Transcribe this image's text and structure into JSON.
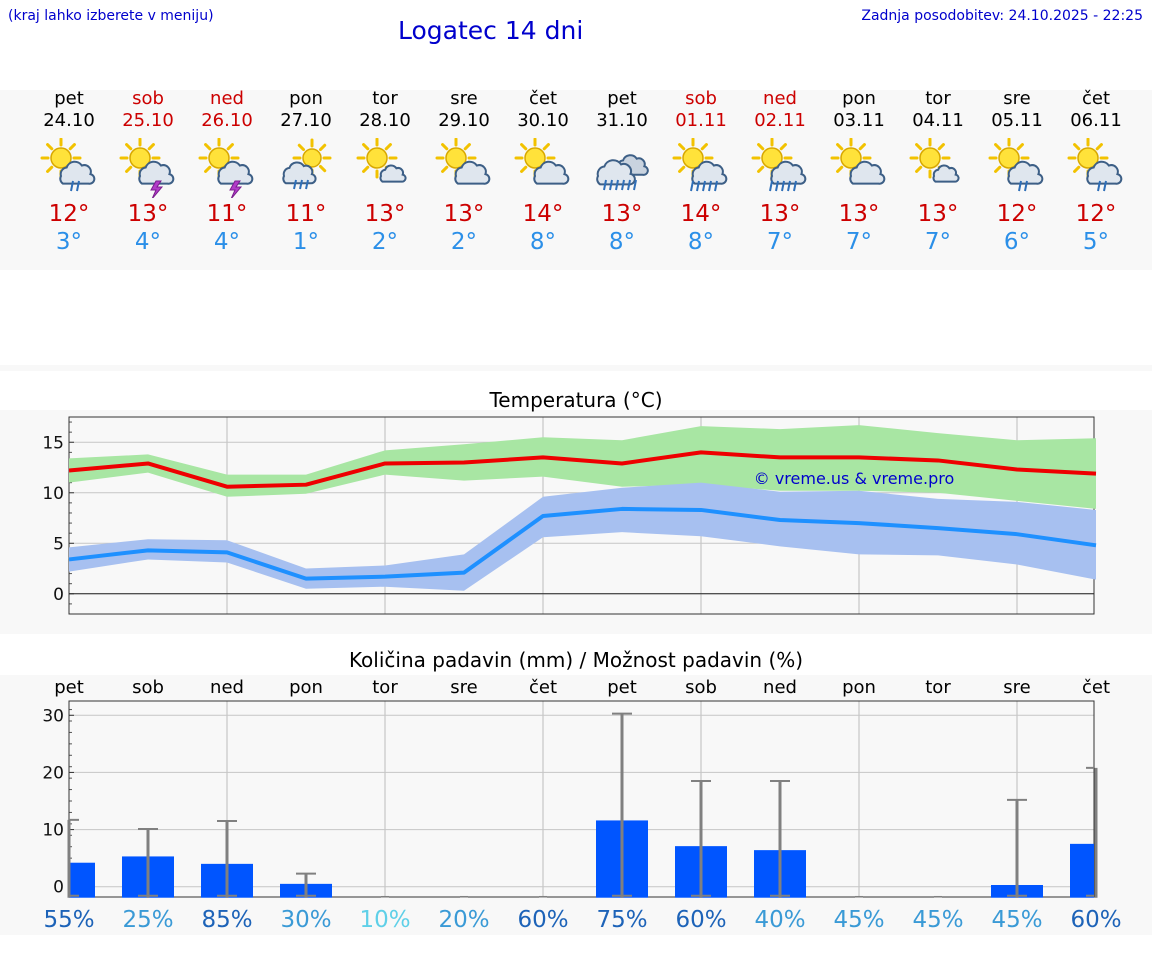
{
  "header": {
    "hint": "(kraj lahko izberete v meniju)",
    "title": "Logatec 14 dni",
    "updated": "Zadnja posodobitev: 24.10.2025 - 22:25"
  },
  "days": [
    {
      "name": "pet",
      "date": "24.10",
      "max": "12°",
      "min": "3°",
      "weekend": false,
      "icon": "sun-cloud-rain-icon"
    },
    {
      "name": "sob",
      "date": "25.10",
      "max": "13°",
      "min": "4°",
      "weekend": true,
      "icon": "sun-cloud-thunder-icon"
    },
    {
      "name": "ned",
      "date": "26.10",
      "max": "11°",
      "min": "4°",
      "weekend": true,
      "icon": "sun-cloud-thunder-icon"
    },
    {
      "name": "pon",
      "date": "27.10",
      "max": "11°",
      "min": "1°",
      "weekend": false,
      "icon": "cloud-sun-rain-icon"
    },
    {
      "name": "tor",
      "date": "28.10",
      "max": "13°",
      "min": "2°",
      "weekend": false,
      "icon": "sun-small-cloud-icon"
    },
    {
      "name": "sre",
      "date": "29.10",
      "max": "13°",
      "min": "2°",
      "weekend": false,
      "icon": "sun-cloud-icon"
    },
    {
      "name": "čet",
      "date": "30.10",
      "max": "14°",
      "min": "8°",
      "weekend": false,
      "icon": "sun-cloud-icon"
    },
    {
      "name": "pet",
      "date": "31.10",
      "max": "13°",
      "min": "8°",
      "weekend": false,
      "icon": "cloud-heavy-rain-icon"
    },
    {
      "name": "sob",
      "date": "01.11",
      "max": "14°",
      "min": "8°",
      "weekend": true,
      "icon": "sun-cloud-heavy-rain-icon"
    },
    {
      "name": "ned",
      "date": "02.11",
      "max": "13°",
      "min": "7°",
      "weekend": true,
      "icon": "sun-cloud-heavy-rain-icon"
    },
    {
      "name": "pon",
      "date": "03.11",
      "max": "13°",
      "min": "7°",
      "weekend": false,
      "icon": "sun-cloud-icon"
    },
    {
      "name": "tor",
      "date": "04.11",
      "max": "13°",
      "min": "7°",
      "weekend": false,
      "icon": "sun-small-cloud-icon"
    },
    {
      "name": "sre",
      "date": "05.11",
      "max": "12°",
      "min": "6°",
      "weekend": false,
      "icon": "sun-cloud-rain-icon"
    },
    {
      "name": "čet",
      "date": "06.11",
      "max": "12°",
      "min": "5°",
      "weekend": false,
      "icon": "sun-cloud-rain-icon"
    }
  ],
  "colors": {
    "max_line": "#ee0000",
    "max_band": "#a8e6a3",
    "min_line": "#1e90ff",
    "min_band": "#a7c0f0",
    "bar": "#0055ff",
    "whisker": "#808080",
    "weekend": "#cc0000"
  },
  "chart_data": [
    {
      "type": "line",
      "title": "Temperatura (°C)",
      "categories": [
        "24.10",
        "25.10",
        "26.10",
        "27.10",
        "28.10",
        "29.10",
        "30.10",
        "31.10",
        "01.11",
        "02.11",
        "03.11",
        "04.11",
        "05.11",
        "06.11"
      ],
      "ylim": [
        -2,
        17.5
      ],
      "yticks": [
        0,
        5,
        10,
        15
      ],
      "watermark": "© vreme.us & vreme.pro",
      "series": [
        {
          "name": "max",
          "values": [
            12.2,
            12.9,
            10.6,
            10.8,
            12.9,
            13.0,
            13.5,
            12.9,
            14.0,
            13.5,
            13.5,
            13.2,
            12.3,
            11.9
          ],
          "band_low": [
            11.0,
            12.0,
            9.6,
            9.9,
            11.8,
            11.2,
            11.6,
            10.6,
            10.8,
            10.2,
            10.2,
            10.0,
            9.2,
            8.4
          ],
          "band_high": [
            13.4,
            13.8,
            11.8,
            11.8,
            14.2,
            14.8,
            15.5,
            15.2,
            16.6,
            16.3,
            16.7,
            15.9,
            15.2,
            15.4
          ]
        },
        {
          "name": "min",
          "values": [
            3.4,
            4.3,
            4.1,
            1.5,
            1.7,
            2.1,
            7.7,
            8.4,
            8.3,
            7.3,
            7.0,
            6.5,
            5.9,
            4.8
          ],
          "band_low": [
            2.2,
            3.4,
            3.1,
            0.5,
            0.7,
            0.3,
            5.6,
            6.1,
            5.7,
            4.7,
            3.9,
            3.8,
            2.9,
            1.4
          ],
          "band_high": [
            4.6,
            5.4,
            5.3,
            2.5,
            2.8,
            3.9,
            9.6,
            10.5,
            11.0,
            10.1,
            10.2,
            9.4,
            9.1,
            8.3
          ]
        }
      ]
    },
    {
      "type": "bar",
      "title": "Količina padavin (mm) / Možnost padavin (%)",
      "categories": [
        "pet",
        "sob",
        "ned",
        "pon",
        "tor",
        "sre",
        "čet",
        "pet",
        "sob",
        "ned",
        "pon",
        "tor",
        "sre",
        "čet"
      ],
      "ylim": [
        -1.8,
        32.5
      ],
      "yticks": [
        0,
        10,
        20,
        30
      ],
      "values": [
        4.2,
        5.3,
        4.0,
        0.5,
        0,
        0,
        0,
        11.6,
        7.1,
        6.4,
        0,
        0,
        0.3,
        7.5
      ],
      "err_low": [
        0,
        0,
        0,
        0,
        0,
        0,
        0,
        0,
        0,
        0,
        0,
        0,
        0,
        0
      ],
      "err_high": [
        11.7,
        10.1,
        11.5,
        2.3,
        0,
        0,
        0,
        30.3,
        18.5,
        18.5,
        0,
        0,
        15.2,
        20.8
      ],
      "probability": [
        "55%",
        "25%",
        "85%",
        "30%",
        "10%",
        "20%",
        "60%",
        "75%",
        "60%",
        "40%",
        "45%",
        "45%",
        "45%",
        "60%"
      ],
      "probability_values": [
        55,
        25,
        85,
        30,
        10,
        20,
        60,
        75,
        60,
        40,
        45,
        45,
        45,
        60
      ]
    }
  ]
}
